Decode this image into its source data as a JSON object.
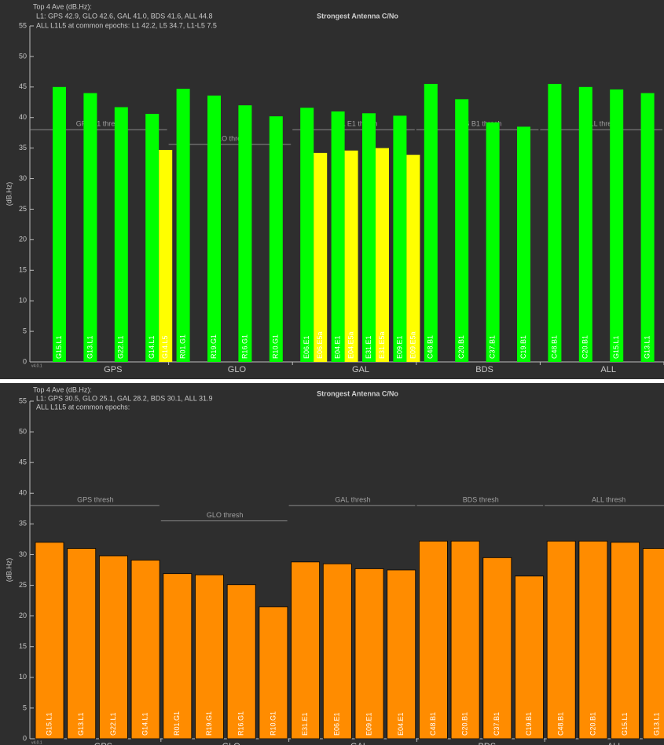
{
  "chart_data": [
    {
      "type": "bar",
      "title": "Strongest Antenna C/No",
      "annotations": [
        "Top 4 Ave (dB.Hz):",
        "L1: GPS 42.9, GLO 42.6, GAL 41.0, BDS 41.6, ALL 44.8",
        "ALL L1L5 at common epochs:  L1 42.2, L5 34.7, L1-L5  7.5"
      ],
      "ylabel": "(dB.Hz)",
      "version": "v4.0.1",
      "groups": [
        "GPS",
        "GLO",
        "GAL",
        "BDS",
        "ALL"
      ],
      "thresholds": [
        {
          "label": "GPS L1 thresh",
          "value": 38
        },
        {
          "label": "GLO thresh",
          "value": 35.6
        },
        {
          "label": "GAL E1 thresh",
          "value": 38
        },
        {
          "label": "BDS B1 thresh",
          "value": 38
        },
        {
          "label": "ALL thresh",
          "value": 38
        }
      ],
      "categories": [
        "G15.L1",
        "G13.L1",
        "G22.L1",
        "G14.L1",
        "R01.G1",
        "R19.G1",
        "R16.G1",
        "R10.G1",
        "E06.E1",
        "E04.E1",
        "E31.E1",
        "E09.E1",
        "C48.B1",
        "C20.B1",
        "C37.B1",
        "C19.B1",
        "C48.B1",
        "C20.B1",
        "G15.L1",
        "G13.L1"
      ],
      "series": [
        {
          "color": "#00ff00",
          "values": [
            45.0,
            44.0,
            41.7,
            40.6,
            44.7,
            43.6,
            42.0,
            40.2,
            41.6,
            41.0,
            40.7,
            40.3,
            45.5,
            43.0,
            39.2,
            38.5,
            45.5,
            45.0,
            44.6,
            44.0
          ]
        },
        {
          "color": "#ffff00",
          "values": [
            null,
            null,
            null,
            34.7,
            null,
            null,
            null,
            null,
            34.2,
            34.6,
            35.0,
            33.9,
            null,
            null,
            null,
            null,
            null,
            null,
            null,
            null
          ],
          "bar_labels": [
            null,
            null,
            null,
            "G14.L5",
            null,
            null,
            null,
            null,
            "E06.E5a",
            "E04.E5a",
            "E31.E5a",
            "E09.E5a",
            null,
            null,
            null,
            null,
            null,
            null,
            null,
            null
          ]
        }
      ],
      "ylim": [
        0,
        55
      ],
      "yticks": [
        0,
        5,
        10,
        15,
        20,
        25,
        30,
        35,
        40,
        45,
        50,
        55
      ],
      "grid": false
    },
    {
      "type": "bar",
      "title": "Strongest Antenna C/No",
      "annotations": [
        "Top 4 Ave (dB.Hz):",
        "L1: GPS 30.5, GLO 25.1, GAL 28.2, BDS 30.1, ALL 31.9",
        "ALL L1L5 at common epochs:"
      ],
      "ylabel": "(dB.Hz)",
      "version": "v4.0.1",
      "groups": [
        "GPS",
        "GLO",
        "GAL",
        "BDS",
        "ALL"
      ],
      "thresholds": [
        {
          "label": "GPS thresh",
          "value": 38
        },
        {
          "label": "GLO thresh",
          "value": 35.5
        },
        {
          "label": "GAL thresh",
          "value": 38
        },
        {
          "label": "BDS thresh",
          "value": 38
        },
        {
          "label": "ALL thresh",
          "value": 38
        }
      ],
      "categories": [
        "G15.L1",
        "G13.L1",
        "G22.L1",
        "G14.L1",
        "R01.G1",
        "R19.G1",
        "R16.G1",
        "R10.G1",
        "E31.E1",
        "E06.E1",
        "E09.E1",
        "E04.E1",
        "C48.B1",
        "C20.B1",
        "C37.B1",
        "C19.B1",
        "C48.B1",
        "C20.B1",
        "G15.L1",
        "G13.L1"
      ],
      "series": [
        {
          "color": "#ff8c00",
          "values": [
            32.0,
            31.0,
            29.8,
            29.1,
            26.9,
            26.7,
            25.1,
            21.5,
            28.8,
            28.5,
            27.7,
            27.5,
            32.2,
            32.2,
            29.5,
            26.5,
            32.2,
            32.2,
            32.0,
            31.0
          ]
        }
      ],
      "ylim": [
        0,
        55
      ],
      "yticks": [
        0,
        5,
        10,
        15,
        20,
        25,
        30,
        35,
        40,
        45,
        50,
        55
      ],
      "grid": false
    }
  ]
}
